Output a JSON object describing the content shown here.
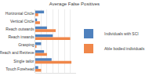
{
  "chart_data": {
    "type": "bar",
    "title": "Average False Positives",
    "orientation": "horizontal",
    "categories": [
      "Horizontal Circle",
      "Vertical Circle",
      "Reach outwards",
      "Reach inwards",
      "Grasping",
      "Reach and Retrieve",
      "Single tailor",
      "Touch Forehead"
    ],
    "series": [
      {
        "name": "Individuals with SCI",
        "color": "#4f81bd",
        "values": [
          15,
          3,
          20,
          30,
          10,
          15,
          28,
          5
        ]
      },
      {
        "name": "Able bodied individuals",
        "color": "#f0874a",
        "values": [
          5,
          8,
          35,
          60,
          2,
          20,
          62,
          10
        ]
      }
    ],
    "xlim": [
      0,
      70
    ],
    "xticks": [
      0,
      10,
      20,
      30,
      40,
      50,
      60,
      70
    ],
    "grid": true,
    "legend": "right",
    "tick_labels": "y"
  }
}
